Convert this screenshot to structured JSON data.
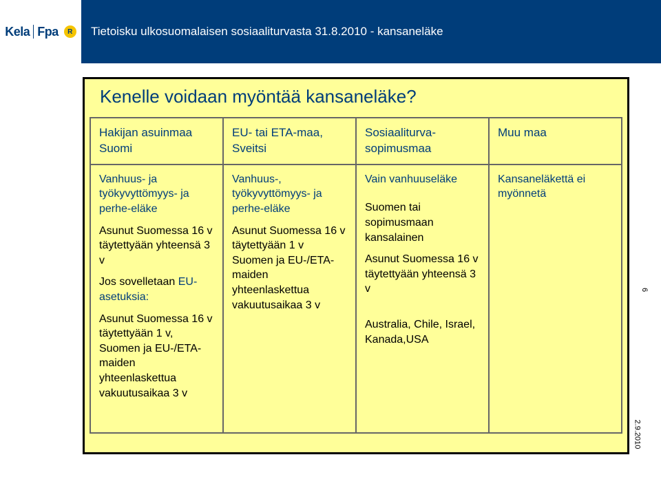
{
  "header": {
    "logo_left": "Kela",
    "logo_right": "Fpa",
    "logo_badge": "R",
    "title": "Tietoisku ulkosuomalaisen sosiaaliturvasta 31.8.2010 - kansaneläke"
  },
  "slide": {
    "title": "Kenelle voidaan myöntää kansaneläke?",
    "background_color": "#ffff99",
    "border_color": "#000000"
  },
  "table": {
    "row1": {
      "c1_line1": "Hakijan asuinmaa",
      "c1_line2": "Suomi",
      "c2": "EU- tai ETA-maa, Sveitsi",
      "c3": "Sosiaaliturva-sopimusmaa",
      "c4": "Muu maa"
    },
    "row2": {
      "c1_block1": "Vanhuus- ja työkyvyttömyys- ja perhe-eläke",
      "c1_block2": "Asunut Suomessa 16 v täytettyään yhteensä 3 v",
      "c1_block3_pre": "Jos sovelletaan ",
      "c1_block3_link": "EU-asetuksia:",
      "c1_block4": "Asunut Suomessa 16 v täytettyään 1 v, Suomen ja  EU-/ETA-maiden yhteenlaskettua vakuutusaikaa 3 v",
      "c2_block1": "Vanhuus-, työkyvyttömyys- ja perhe-eläke",
      "c2_block2": "Asunut Suomessa 16 v täytettyään 1 v Suomen ja EU-/ETA-maiden yhteenlaskettua vakuutusaikaa 3 v",
      "c3_block1": "Vain vanhuuseläke",
      "c3_block2": "Suomen tai sopimusmaan kansalainen",
      "c3_block3": "Asunut Suomessa 16 v täytettyään yhteensä 3 v",
      "c3_block4": "Australia, Chile, Israel, Kanada,USA",
      "c4": "Kansaneläkettä ei myönnetä"
    }
  },
  "footer": {
    "page": "6",
    "date": "2.9.2010"
  },
  "colors": {
    "brand_blue": "#003d7a",
    "cell_border": "#666666",
    "text_black": "#000000"
  }
}
